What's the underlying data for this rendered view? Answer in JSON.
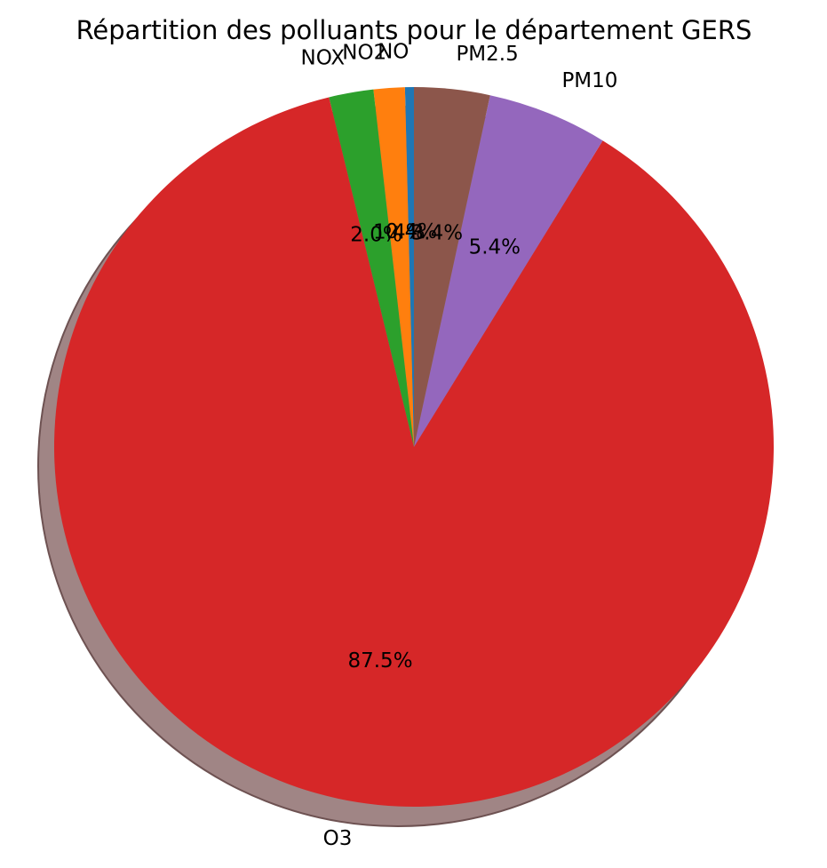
{
  "chart_data": {
    "type": "pie",
    "title": "Répartition des polluants pour le département GERS",
    "labels": [
      "NO",
      "NO2",
      "NOX",
      "O3",
      "PM10",
      "PM2.5"
    ],
    "values": [
      0.4,
      1.4,
      2.0,
      87.5,
      5.4,
      3.4
    ],
    "pct_labels": [
      "0.4%",
      "1.4%",
      "2.0%",
      "87.5%",
      "5.4%",
      "3.4%"
    ],
    "colors": [
      "#1f77b4",
      "#ff7f0e",
      "#2ca02c",
      "#d62728",
      "#9467bd",
      "#8c564b"
    ],
    "shadow": true,
    "start_angle": 90
  }
}
